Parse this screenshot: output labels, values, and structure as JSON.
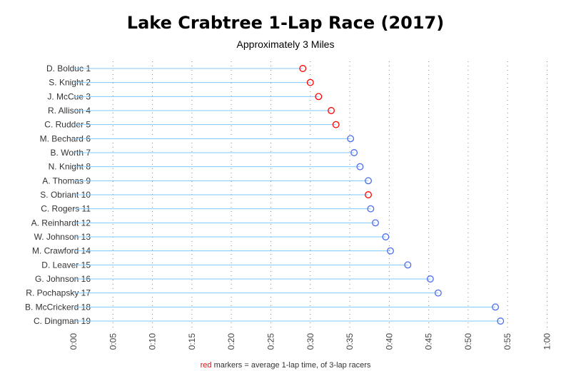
{
  "chart_data": {
    "type": "lollipop",
    "title": "Lake Crabtree 1-Lap Race (2017)",
    "subtitle": "Approximately 3 Miles",
    "xunit": "minutes",
    "xlim": [
      0,
      60
    ],
    "xticks": [
      0,
      5,
      10,
      15,
      20,
      25,
      30,
      35,
      40,
      45,
      50,
      55,
      60
    ],
    "xtick_labels": [
      "0:00",
      "0:05",
      "0:10",
      "0:15",
      "0:20",
      "0:25",
      "0:30",
      "0:35",
      "0:40",
      "0:45",
      "0:50",
      "0:55",
      "1:00"
    ],
    "grid": "vertical dotted",
    "categories": [
      "D. Bolduc 1",
      "S. Knight 2",
      "J. McCue 3",
      "R. Allison 4",
      "C. Rudder 5",
      "M. Bechard 6",
      "B. Worth 7",
      "N. Knight 8",
      "A. Thomas 9",
      "S. Obriant 10",
      "C. Rogers 11",
      "A. Reinhardt 12",
      "W. Johnson 13",
      "M. Crawford 14",
      "D. Leaver 15",
      "G. Johnson 16",
      "R. Pochapsky 17",
      "B. McCrickerd 18",
      "C. Dingman 19"
    ],
    "values": [
      29.05,
      30.0,
      31.05,
      32.65,
      33.25,
      35.1,
      35.55,
      36.3,
      37.35,
      37.35,
      37.65,
      38.25,
      39.55,
      40.15,
      42.35,
      45.2,
      46.2,
      53.45,
      54.1
    ],
    "three_lap_average": [
      true,
      true,
      true,
      true,
      true,
      false,
      false,
      false,
      false,
      true,
      false,
      false,
      false,
      false,
      false,
      false,
      false,
      false,
      false
    ],
    "colors": {
      "red": "#ff0000",
      "blue": "#4a6cf0",
      "stem": "#7fc8ff",
      "grid": "#888888"
    },
    "footnote": {
      "highlight": "red",
      "text": " markers = average 1-lap time, of 3-lap racers"
    }
  }
}
